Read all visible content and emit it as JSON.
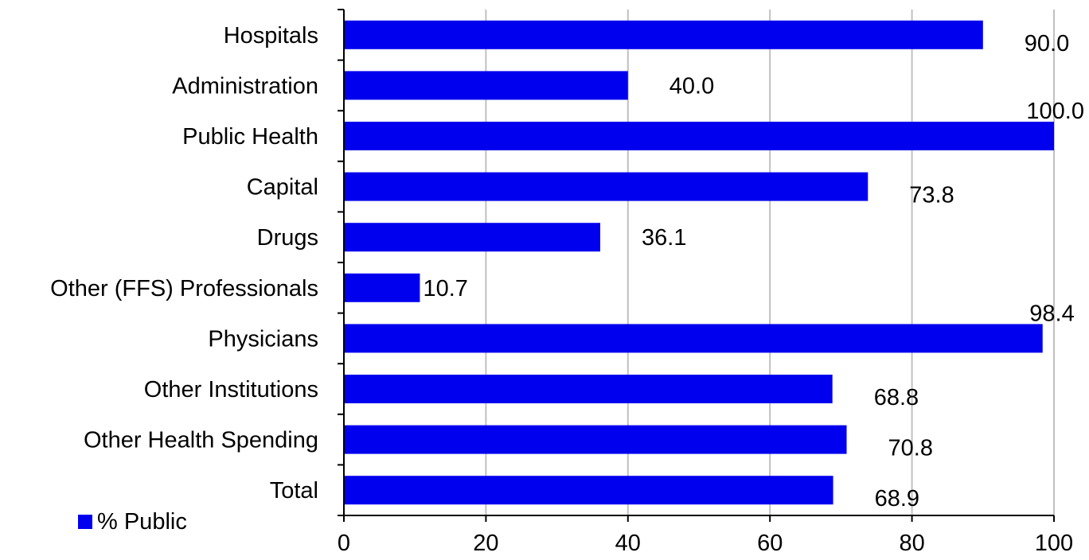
{
  "chart_data": {
    "type": "bar",
    "orientation": "horizontal",
    "categories": [
      "Hospitals",
      "Administration",
      "Public Health",
      "Capital",
      "Drugs",
      "Other (FFS) Professionals",
      "Physicians",
      "Other Institutions",
      "Other Health Spending",
      "Total"
    ],
    "series": [
      {
        "name": "% Public",
        "values": [
          90.0,
          40.0,
          100.0,
          73.8,
          36.1,
          10.7,
          98.4,
          68.8,
          70.8,
          68.9
        ],
        "labels": [
          "90.0",
          "40.0",
          "100.0",
          "73.8",
          "36.1",
          "10.7",
          "98.4",
          "68.8",
          "70.8",
          "68.9"
        ],
        "color": "#0000ee"
      }
    ],
    "xlim": [
      0,
      100
    ],
    "x_ticks": [
      "0",
      "20",
      "40",
      "60",
      "80",
      "100"
    ],
    "grid": "vertical",
    "gridline_color": "#c0c0c0",
    "legend": {
      "placement": "bottom-left",
      "entries": [
        "% Public"
      ]
    }
  }
}
